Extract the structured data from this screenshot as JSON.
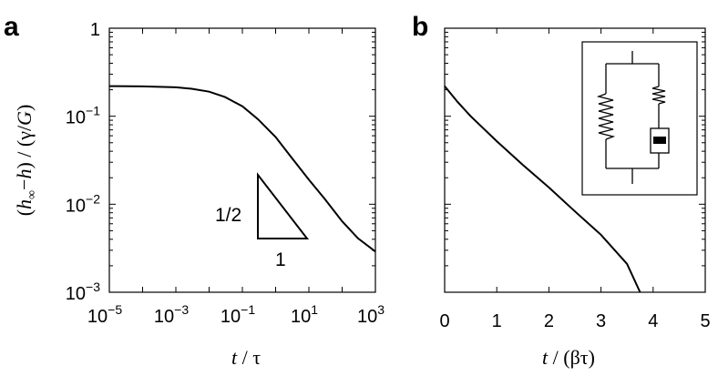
{
  "chart_data": [
    {
      "panel": "a",
      "type": "line",
      "xscale": "log",
      "yscale": "log",
      "xlim": [
        1e-05,
        1000
      ],
      "ylim": [
        0.001,
        1
      ],
      "xlabel": {
        "italic": "t",
        "rest": " / τ"
      },
      "ylabel": {
        "pre": "(",
        "h1": "h",
        "sub": "∞",
        "mid": "−",
        "h2": "h",
        "post": ") / (γ/",
        "G": "G",
        "end": ")"
      },
      "x_ticks": [
        {
          "base": "10",
          "exp": "−5",
          "value": 1e-05
        },
        {
          "base": "10",
          "exp": "−3",
          "value": 0.001
        },
        {
          "base": "10",
          "exp": "−1",
          "value": 0.1
        },
        {
          "base": "10",
          "exp": "1",
          "value": 10
        },
        {
          "base": "10",
          "exp": "3",
          "value": 1000
        }
      ],
      "y_ticks": [
        {
          "base": "10",
          "exp": "−3",
          "value": 0.001
        },
        {
          "base": "10",
          "exp": "−2",
          "value": 0.01
        },
        {
          "base": "10",
          "exp": "−1",
          "value": 0.1
        },
        {
          "base": "",
          "exp": "",
          "plain": "1",
          "value": 1
        }
      ],
      "series": [
        {
          "x": [
            1e-05,
            0.0001,
            0.001,
            0.003,
            0.01,
            0.03,
            0.1,
            0.3,
            1,
            3,
            10,
            30,
            100,
            300,
            1000
          ],
          "y": [
            0.22,
            0.218,
            0.213,
            0.205,
            0.19,
            0.165,
            0.13,
            0.092,
            0.058,
            0.034,
            0.019,
            0.0115,
            0.0064,
            0.0041,
            0.0029
          ]
        }
      ],
      "slope_triangle": {
        "rise_label": "1/2",
        "run_label": "1"
      }
    },
    {
      "panel": "b",
      "type": "line",
      "xscale": "linear",
      "yscale": "log",
      "xlim": [
        0,
        5
      ],
      "ylim": [
        0.001,
        1
      ],
      "xlabel": {
        "italic": "t",
        "rest": " / (βτ)"
      },
      "x_ticks": [
        "0",
        "1",
        "2",
        "3",
        "4",
        "5"
      ],
      "series": [
        {
          "x": [
            0,
            0.25,
            0.5,
            1,
            1.5,
            2,
            2.5,
            3,
            3.5,
            3.75
          ],
          "y": [
            0.22,
            0.145,
            0.1,
            0.052,
            0.028,
            0.0155,
            0.0083,
            0.0045,
            0.0021,
            0.001
          ]
        }
      ],
      "inset": "spring-dashpot-circuit"
    }
  ]
}
